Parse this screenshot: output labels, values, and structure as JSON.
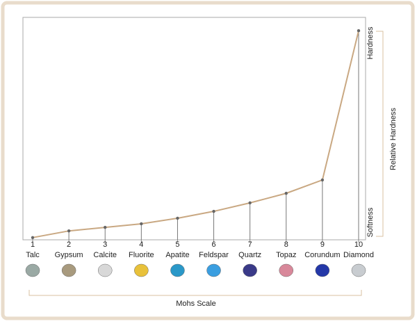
{
  "chart_data": {
    "type": "line",
    "x": [
      1,
      2,
      3,
      4,
      5,
      6,
      7,
      8,
      9,
      10
    ],
    "categories": [
      "Talc",
      "Gypsum",
      "Calcite",
      "Fluorite",
      "Apatite",
      "Feldspar",
      "Quartz",
      "Topaz",
      "Corundum",
      "Diamond"
    ],
    "series": [
      {
        "color": "#c9a882",
        "values": [
          1,
          4,
          5.6,
          7.2,
          9.7,
          12.8,
          16.6,
          20.9,
          26.9,
          94
        ]
      }
    ],
    "xlim": [
      1,
      10
    ],
    "xticks": [
      1,
      2,
      3,
      4,
      5,
      6,
      7,
      8,
      9,
      10
    ],
    "ylim": [
      0,
      100
    ],
    "x_label": "Mohs Scale",
    "y_label": "Relative Hardness",
    "y_top_label": "Hardness",
    "y_bottom_label": "Softness"
  }
}
